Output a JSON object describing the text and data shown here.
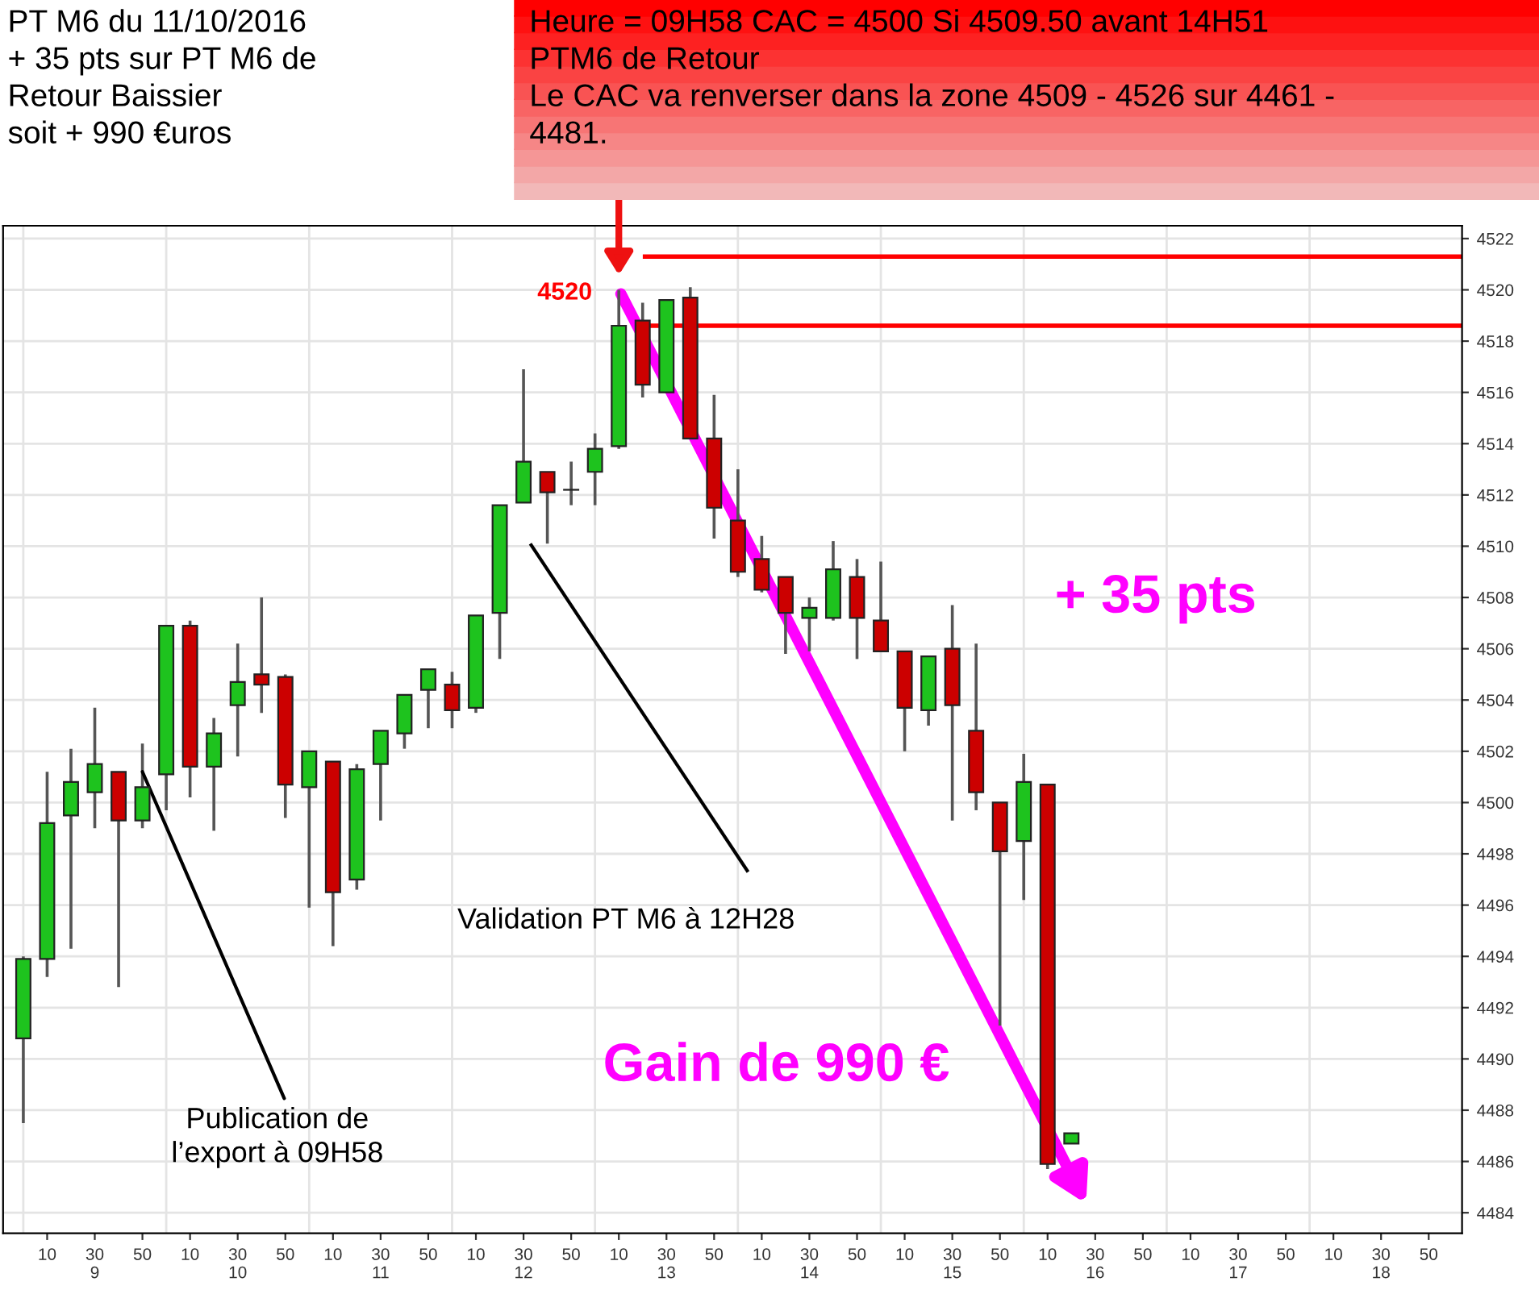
{
  "chart_data": {
    "type": "candlestick",
    "title": "PT M6 du 11/10/2016\n+ 35 pts sur PT M6 de\nRetour Baissier\nsoit + 990 €uros",
    "subtitle": "Heure = 09H58 CAC = 4500 Si 4509.50 avant 14H51\nPTM6 de Retour\nLe CAC va renverser dans la zone 4509 - 4526 sur 4461 -\n4481.",
    "categories": [
      null,
      "10",
      null,
      "30\n9",
      null,
      "50",
      null,
      "10",
      null,
      "30\n10",
      null,
      "50",
      null,
      "10",
      null,
      "30\n11",
      null,
      "50",
      null,
      "10",
      null,
      "30\n12",
      null,
      "50",
      null,
      "10",
      null,
      "30\n13",
      null,
      "50",
      null,
      "10",
      null,
      "30\n14",
      null,
      "50",
      null,
      "10",
      null,
      "30\n15",
      null,
      "50",
      null,
      "10",
      null,
      "30\n16",
      null,
      "50",
      null,
      "10",
      null,
      "30\n17",
      null,
      "50",
      null,
      "10",
      null,
      "30\n18",
      null,
      "50"
    ],
    "ohlc": [
      [
        4490.8,
        4494.0,
        4487.5,
        4493.9
      ],
      [
        4493.9,
        4501.2,
        4493.2,
        4499.2
      ],
      [
        4499.5,
        4502.1,
        4494.3,
        4500.8
      ],
      [
        4500.4,
        4503.7,
        4499.0,
        4501.5
      ],
      [
        4501.2,
        4501.2,
        4492.8,
        4499.3
      ],
      [
        4499.3,
        4502.3,
        4499.0,
        4500.6
      ],
      [
        4501.1,
        4506.9,
        4499.7,
        4506.9
      ],
      [
        4506.9,
        4507.1,
        4500.2,
        4501.4
      ],
      [
        4501.4,
        4503.3,
        4498.9,
        4502.7
      ],
      [
        4503.8,
        4506.2,
        4501.8,
        4504.7
      ],
      [
        4505.0,
        4508.0,
        4503.5,
        4504.6
      ],
      [
        4504.9,
        4505.0,
        4499.4,
        4500.7
      ],
      [
        4500.6,
        4502.0,
        4495.9,
        4502.0
      ],
      [
        4501.6,
        4501.6,
        4494.4,
        4496.5
      ],
      [
        4497.0,
        4501.5,
        4496.6,
        4501.3
      ],
      [
        4501.5,
        4502.8,
        4499.3,
        4502.8
      ],
      [
        4502.7,
        4504.2,
        4502.1,
        4504.2
      ],
      [
        4504.4,
        4505.2,
        4502.9,
        4505.2
      ],
      [
        4504.6,
        4505.1,
        4502.9,
        4503.6
      ],
      [
        4503.7,
        4507.3,
        4503.5,
        4507.3
      ],
      [
        4507.4,
        4511.6,
        4505.6,
        4511.6
      ],
      [
        4511.7,
        4516.9,
        4511.7,
        4513.3
      ],
      [
        4512.9,
        4512.9,
        4510.1,
        4512.1
      ],
      [
        4512.2,
        4513.3,
        4511.6,
        4512.2
      ],
      [
        4512.9,
        4514.4,
        4511.6,
        4513.8
      ],
      [
        4513.9,
        4520.0,
        4513.8,
        4518.6
      ],
      [
        4518.8,
        4519.5,
        4515.8,
        4516.3
      ],
      [
        4516.0,
        4519.6,
        4516.0,
        4519.6
      ],
      [
        4519.7,
        4520.1,
        4514.2,
        4514.2
      ],
      [
        4514.2,
        4515.9,
        4510.3,
        4511.5
      ],
      [
        4511.0,
        4513.0,
        4508.8,
        4509.0
      ],
      [
        4509.5,
        4510.4,
        4508.2,
        4508.3
      ],
      [
        4508.8,
        4508.8,
        4505.8,
        4507.4
      ],
      [
        4507.2,
        4508.0,
        4505.9,
        4507.6
      ],
      [
        4507.2,
        4510.2,
        4507.1,
        4509.1
      ],
      [
        4508.8,
        4509.5,
        4505.6,
        4507.2
      ],
      [
        4507.1,
        4509.4,
        4505.9,
        4505.9
      ],
      [
        4505.9,
        4505.9,
        4502.0,
        4503.7
      ],
      [
        4503.6,
        4505.7,
        4503.0,
        4505.7
      ],
      [
        4506.0,
        4507.7,
        4499.3,
        4503.8
      ],
      [
        4502.8,
        4506.2,
        4499.7,
        4500.4
      ],
      [
        4500.0,
        4500.0,
        4491.3,
        4498.1
      ],
      [
        4498.5,
        4501.9,
        4496.2,
        4500.8
      ],
      [
        4500.7,
        4500.7,
        4485.7,
        4485.9
      ],
      [
        4486.7,
        4487.1,
        4486.7,
        4487.1
      ],
      null,
      null,
      null,
      null,
      null,
      null,
      null,
      null,
      null,
      null,
      null,
      null,
      null,
      null,
      null
    ],
    "colors": [
      "#1ec31e",
      "#1ec31e",
      "#1ec31e",
      "#1ec31e",
      "#cc0000",
      "#1ec31e",
      "#1ec31e",
      "#cc0000",
      "#1ec31e",
      "#1ec31e",
      "#cc0000",
      "#cc0000",
      "#1ec31e",
      "#cc0000",
      "#1ec31e",
      "#1ec31e",
      "#1ec31e",
      "#1ec31e",
      "#cc0000",
      "#1ec31e",
      "#1ec31e",
      "#1ec31e",
      "#cc0000",
      "#1ec31e",
      "#1ec31e",
      "#1ec31e",
      "#cc0000",
      "#1ec31e",
      "#cc0000",
      "#cc0000",
      "#cc0000",
      "#cc0000",
      "#cc0000",
      "#1ec31e",
      "#1ec31e",
      "#cc0000",
      "#cc0000",
      "#cc0000",
      "#1ec31e",
      "#cc0000",
      "#cc0000",
      "#cc0000",
      "#1ec31e",
      "#cc0000",
      "#1ec31e",
      null,
      null,
      null,
      null,
      null,
      null,
      null,
      null,
      null,
      null,
      null,
      null,
      null,
      null,
      null
    ],
    "ylim": [
      4483.2,
      4522.5
    ],
    "yticks": [
      4484,
      4486,
      4488,
      4490,
      4492,
      4494,
      4496,
      4498,
      4500,
      4502,
      4504,
      4506,
      4508,
      4510,
      4512,
      4514,
      4516,
      4518,
      4520,
      4522
    ],
    "grid": true,
    "ref_lines": [
      {
        "axis": "y",
        "value": 4521.3,
        "color": "#ff0000"
      },
      {
        "axis": "y",
        "value": 4518.6,
        "color": "#ff0000"
      }
    ],
    "annotations": [
      "4520",
      {
        "text": "Publication de\nl’export à 09H58",
        "x": "50",
        "y": 4501.2
      },
      "Validation PT M6 à 12H28",
      "+ 35 pts",
      "Gain de 990 €"
    ]
  }
}
